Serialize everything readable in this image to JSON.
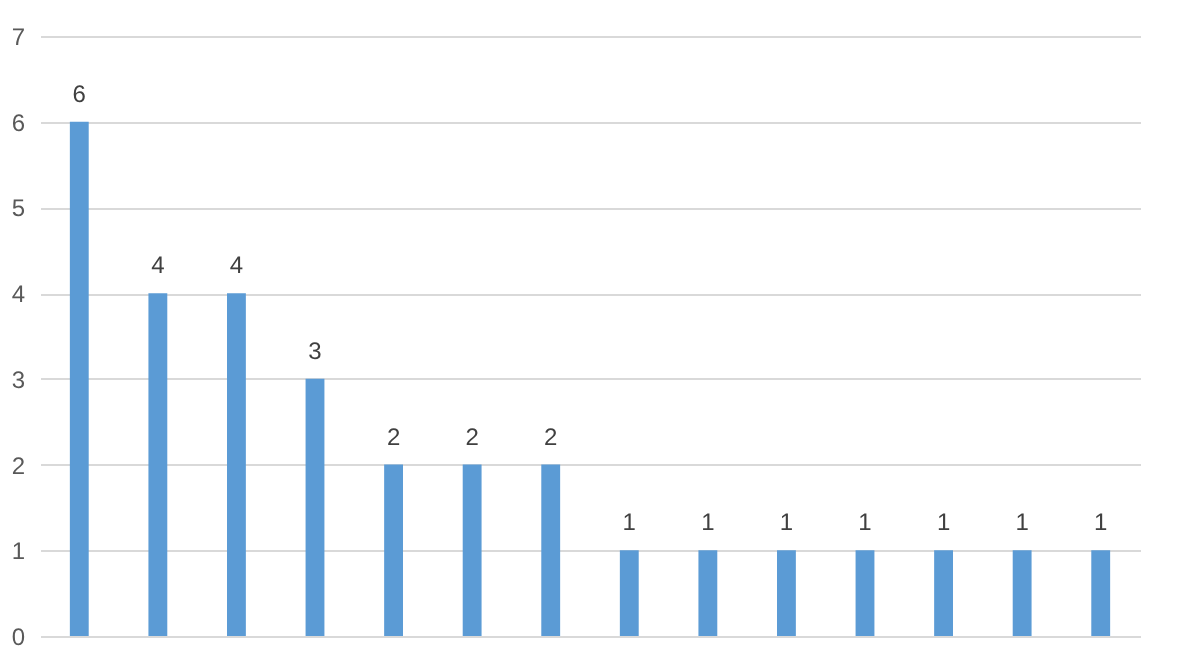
{
  "chart_data": {
    "type": "bar",
    "categories": [
      null,
      null,
      null,
      null,
      null,
      null,
      null,
      null,
      null,
      null,
      null,
      null,
      null,
      null
    ],
    "values": [
      6,
      4,
      4,
      3,
      2,
      2,
      2,
      1,
      1,
      1,
      1,
      1,
      1,
      1
    ],
    "color": "#5b9bd5",
    "ylim": [
      0,
      7
    ],
    "yticks": [
      0,
      1,
      2,
      3,
      4,
      5,
      6,
      7
    ],
    "grid": "y",
    "data_labels": true,
    "tick_labels": "y"
  }
}
